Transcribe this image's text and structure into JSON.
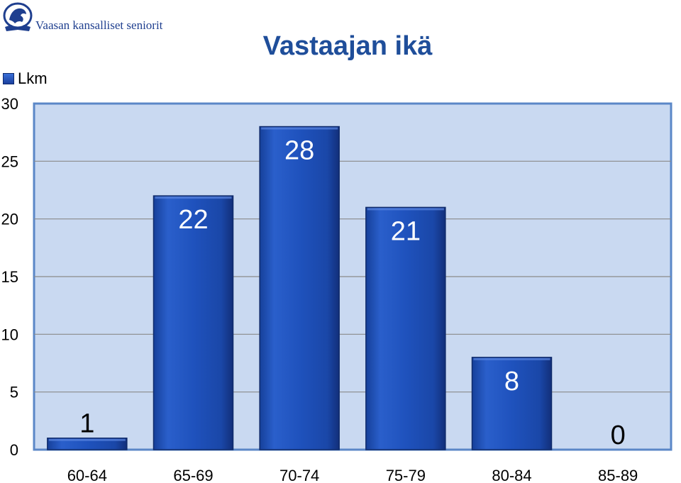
{
  "organization": {
    "name": "Vaasan kansalliset seniorit",
    "logo_icon": "lion-emblem-icon"
  },
  "chart_data": {
    "type": "bar",
    "title": "Vastaajan ikä",
    "categories": [
      "60-64",
      "65-69",
      "70-74",
      "75-79",
      "80-84",
      "85-89"
    ],
    "series": [
      {
        "name": "Lkm",
        "values": [
          1,
          22,
          28,
          21,
          8,
          0
        ],
        "color": "#1d4fb4"
      }
    ],
    "ylim": [
      0,
      30
    ],
    "yticks": [
      0,
      5,
      10,
      15,
      20,
      25,
      30
    ],
    "grid": true,
    "legend_position": "top-left",
    "data_labels": true,
    "plot_background": "#c9d9f1",
    "plot_border": "#5b87c7"
  }
}
